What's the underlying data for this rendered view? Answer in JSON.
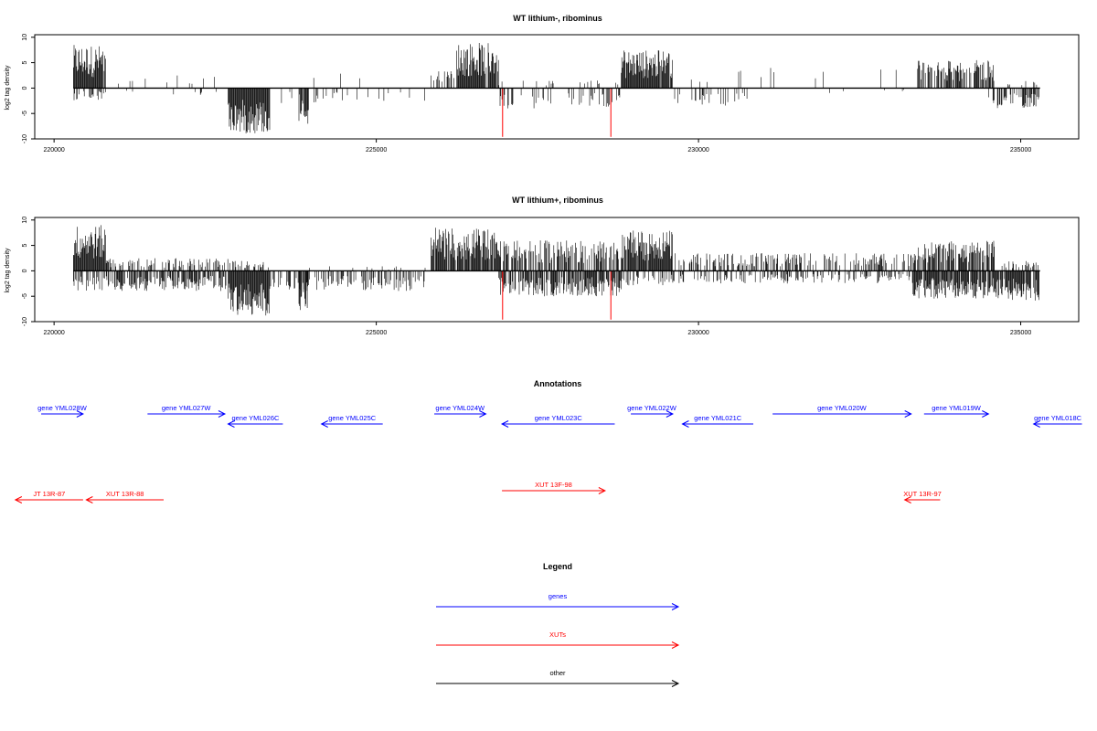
{
  "chart_data": [
    {
      "type": "bar",
      "title": "WT lithium-, ribominus",
      "ylabel": "log2 tag density",
      "xlim": [
        219700,
        235900
      ],
      "ylim": [
        -10,
        10.5
      ],
      "x_ticks": [
        220000,
        225000,
        230000,
        235000
      ],
      "y_ticks": [
        -10,
        -5,
        0,
        5,
        10
      ],
      "baseline": 0,
      "highlight_color": "#ff0000",
      "highlight_bars": [
        {
          "x": 226960,
          "value": -9.6
        },
        {
          "x": 228640,
          "value": -9.6
        }
      ],
      "density_segments": [
        {
          "x_start": 220300,
          "x_end": 220800,
          "level": 8.5,
          "density": 0.98
        },
        {
          "x_start": 220300,
          "x_end": 220800,
          "level": -2.5,
          "density": 0.4
        },
        {
          "x_start": 220800,
          "x_end": 222600,
          "level": 2.5,
          "density": 0.05
        },
        {
          "x_start": 221000,
          "x_end": 222600,
          "level": -1.5,
          "density": 0.03
        },
        {
          "x_start": 222700,
          "x_end": 223350,
          "level": -9,
          "density": 1.0
        },
        {
          "x_start": 223350,
          "x_end": 225800,
          "level": -3,
          "density": 0.07
        },
        {
          "x_start": 223800,
          "x_end": 223950,
          "level": -7.5,
          "density": 0.9
        },
        {
          "x_start": 223950,
          "x_end": 225800,
          "level": 3,
          "density": 0.02
        },
        {
          "x_start": 225850,
          "x_end": 226250,
          "level": 3.5,
          "density": 0.3
        },
        {
          "x_start": 226250,
          "x_end": 226900,
          "level": 9,
          "density": 0.95
        },
        {
          "x_start": 226900,
          "x_end": 228800,
          "level": -4,
          "density": 0.25
        },
        {
          "x_start": 226900,
          "x_end": 228800,
          "level": 1.5,
          "density": 0.05
        },
        {
          "x_start": 228800,
          "x_end": 229600,
          "level": 7.5,
          "density": 0.95
        },
        {
          "x_start": 229600,
          "x_end": 230800,
          "level": -3.5,
          "density": 0.2
        },
        {
          "x_start": 229600,
          "x_end": 233400,
          "level": 4,
          "density": 0.04
        },
        {
          "x_start": 230800,
          "x_end": 233400,
          "level": -1,
          "density": 0.02
        },
        {
          "x_start": 233400,
          "x_end": 234600,
          "level": 5.5,
          "density": 0.6
        },
        {
          "x_start": 234500,
          "x_end": 235300,
          "level": -4,
          "density": 0.5
        },
        {
          "x_start": 234600,
          "x_end": 235300,
          "level": 1.5,
          "density": 0.15
        }
      ]
    },
    {
      "type": "bar",
      "title": "WT lithium+, ribominus",
      "ylabel": "log2 tag density",
      "xlim": [
        219700,
        235900
      ],
      "ylim": [
        -10,
        10.5
      ],
      "x_ticks": [
        220000,
        225000,
        230000,
        235000
      ],
      "y_ticks": [
        -10,
        -5,
        0,
        5,
        10
      ],
      "baseline": 0,
      "highlight_color": "#ff0000",
      "highlight_bars": [
        {
          "x": 226960,
          "value": -9.6
        },
        {
          "x": 228640,
          "value": -9.6
        }
      ],
      "density_segments": [
        {
          "x_start": 220300,
          "x_end": 220800,
          "level": 9,
          "density": 0.98
        },
        {
          "x_start": 220300,
          "x_end": 220800,
          "level": -4,
          "density": 0.5
        },
        {
          "x_start": 220800,
          "x_end": 222700,
          "level": 2.5,
          "density": 0.35
        },
        {
          "x_start": 220800,
          "x_end": 222700,
          "level": -4,
          "density": 0.65
        },
        {
          "x_start": 222700,
          "x_end": 223350,
          "level": -9,
          "density": 1.0
        },
        {
          "x_start": 222700,
          "x_end": 223350,
          "level": 2,
          "density": 0.3
        },
        {
          "x_start": 223350,
          "x_end": 225800,
          "level": -4,
          "density": 0.35
        },
        {
          "x_start": 223800,
          "x_end": 223950,
          "level": -8,
          "density": 0.9
        },
        {
          "x_start": 223950,
          "x_end": 225800,
          "level": 1,
          "density": 0.05
        },
        {
          "x_start": 225850,
          "x_end": 226900,
          "level": 8.5,
          "density": 0.95
        },
        {
          "x_start": 226900,
          "x_end": 228800,
          "level": 6,
          "density": 0.6
        },
        {
          "x_start": 226900,
          "x_end": 228800,
          "level": -5,
          "density": 0.7
        },
        {
          "x_start": 228800,
          "x_end": 229600,
          "level": 8,
          "density": 0.95
        },
        {
          "x_start": 228800,
          "x_end": 229600,
          "level": -3,
          "density": 0.4
        },
        {
          "x_start": 229600,
          "x_end": 233300,
          "level": 3.5,
          "density": 0.35
        },
        {
          "x_start": 229600,
          "x_end": 233300,
          "level": -2.5,
          "density": 0.3
        },
        {
          "x_start": 233300,
          "x_end": 234600,
          "level": 6,
          "density": 0.7
        },
        {
          "x_start": 233300,
          "x_end": 234600,
          "level": -5.5,
          "density": 0.85
        },
        {
          "x_start": 234600,
          "x_end": 235300,
          "level": -6,
          "density": 0.9
        },
        {
          "x_start": 234600,
          "x_end": 235300,
          "level": 2,
          "density": 0.3
        }
      ]
    }
  ],
  "annotations": {
    "title": "Annotations",
    "genes": [
      {
        "label": "gene YML028W",
        "start": 219800,
        "end": 220450,
        "strand": "+"
      },
      {
        "label": "gene YML027W",
        "start": 221450,
        "end": 222650,
        "strand": "+"
      },
      {
        "label": "gene YML026C",
        "start": 222700,
        "end": 223550,
        "strand": "-"
      },
      {
        "label": "gene YML025C",
        "start": 224150,
        "end": 225100,
        "strand": "-"
      },
      {
        "label": "gene YML024W",
        "start": 225900,
        "end": 226700,
        "strand": "+"
      },
      {
        "label": "gene YML023C",
        "start": 226950,
        "end": 228700,
        "strand": "-"
      },
      {
        "label": "gene YML022W",
        "start": 228950,
        "end": 229600,
        "strand": "+"
      },
      {
        "label": "gene YML021C",
        "start": 229750,
        "end": 230850,
        "strand": "-"
      },
      {
        "label": "gene YML020W",
        "start": 231150,
        "end": 233300,
        "strand": "+"
      },
      {
        "label": "gene YML019W",
        "start": 233500,
        "end": 234500,
        "strand": "+"
      },
      {
        "label": "gene YML018C",
        "start": 235200,
        "end": 235950,
        "strand": "-"
      }
    ],
    "xuts": [
      {
        "label": "JT 13R-87",
        "start": 219400,
        "end": 220450,
        "strand": "-"
      },
      {
        "label": "XUT 13R-88",
        "start": 220500,
        "end": 221700,
        "strand": "-"
      },
      {
        "label": "XUT 13F-98",
        "start": 226950,
        "end": 228550,
        "strand": "+"
      },
      {
        "label": "XUT 13R-97",
        "start": 233200,
        "end": 233750,
        "strand": "-"
      }
    ]
  },
  "legend": {
    "title": "Legend",
    "items": [
      {
        "label": "genes",
        "color": "#0000ff"
      },
      {
        "label": "XUTs",
        "color": "#ff0000"
      },
      {
        "label": "other",
        "color": "#000000"
      }
    ]
  },
  "colors": {
    "gene": "#0000ff",
    "xut": "#ff0000",
    "bar": "#000000"
  }
}
